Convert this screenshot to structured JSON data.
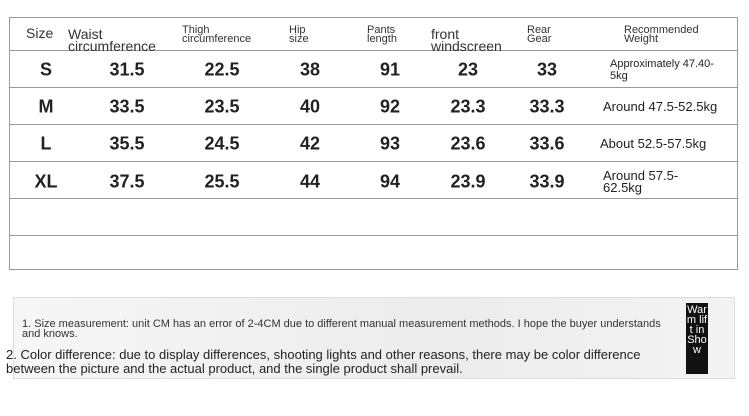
{
  "table": {
    "header": [
      "Size",
      "Waist circumference",
      "Thigh circumference",
      "Hip size",
      "Pants length",
      "front windscreen",
      "Rear Gear",
      "Recommended Weight"
    ],
    "rows": [
      [
        "S",
        "31.5",
        "22.5",
        "38",
        "91",
        "23",
        "33",
        "Approximately 47.40-5kg"
      ],
      [
        "M",
        "33.5",
        "23.5",
        "40",
        "92",
        "23.3",
        "33.3",
        "Around 47.5-52.5kg"
      ],
      [
        "L",
        "35.5",
        "24.5",
        "42",
        "93",
        "23.6",
        "33.6",
        "About 52.5-57.5kg"
      ],
      [
        "XL",
        "37.5",
        "25.5",
        "44",
        "94",
        "23.9",
        "33.9",
        "Around 57.5-62.5kg"
      ]
    ]
  },
  "notes": [
    "1. Size measurement: unit CM has an error of 2-4CM due to different manual measurement methods. I hope the buyer understands and knows.",
    "2. Color difference: due to display differences, shooting lights and other reasons, there may be color difference between the picture and the actual product, and the single product shall prevail."
  ],
  "badge": "Warm lift in Show"
}
